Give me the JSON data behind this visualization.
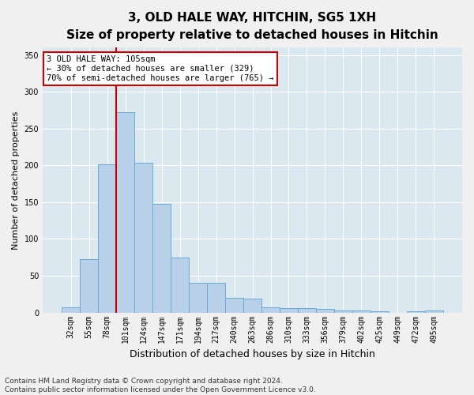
{
  "title": "3, OLD HALE WAY, HITCHIN, SG5 1XH",
  "subtitle": "Size of property relative to detached houses in Hitchin",
  "xlabel": "Distribution of detached houses by size in Hitchin",
  "ylabel": "Number of detached properties",
  "bar_values": [
    7,
    73,
    201,
    272,
    204,
    148,
    75,
    40,
    40,
    20,
    19,
    7,
    6,
    6,
    5,
    3,
    3,
    2,
    0,
    2,
    3
  ],
  "bar_labels": [
    "32sqm",
    "55sqm",
    "78sqm",
    "101sqm",
    "124sqm",
    "147sqm",
    "171sqm",
    "194sqm",
    "217sqm",
    "240sqm",
    "263sqm",
    "286sqm",
    "310sqm",
    "333sqm",
    "356sqm",
    "379sqm",
    "402sqm",
    "425sqm",
    "449sqm",
    "472sqm",
    "495sqm"
  ],
  "bar_color": "#b8d0e8",
  "bar_edge_color": "#6aaad4",
  "fig_bg_color": "#f0f0f0",
  "ax_bg_color": "#dce8f0",
  "grid_color": "#ffffff",
  "annotation_text": "3 OLD HALE WAY: 105sqm\n← 30% of detached houses are smaller (329)\n70% of semi-detached houses are larger (765) →",
  "annotation_box_facecolor": "#ffffff",
  "annotation_box_edgecolor": "#cc0000",
  "vline_color": "#cc0000",
  "vline_x_index": 3,
  "ylim": [
    0,
    360
  ],
  "yticks": [
    0,
    50,
    100,
    150,
    200,
    250,
    300,
    350
  ],
  "footnote": "Contains HM Land Registry data © Crown copyright and database right 2024.\nContains public sector information licensed under the Open Government Licence v3.0.",
  "title_fontsize": 11,
  "subtitle_fontsize": 9.5,
  "xlabel_fontsize": 9,
  "ylabel_fontsize": 8,
  "tick_fontsize": 7,
  "annotation_fontsize": 7.5,
  "footnote_fontsize": 6.5
}
